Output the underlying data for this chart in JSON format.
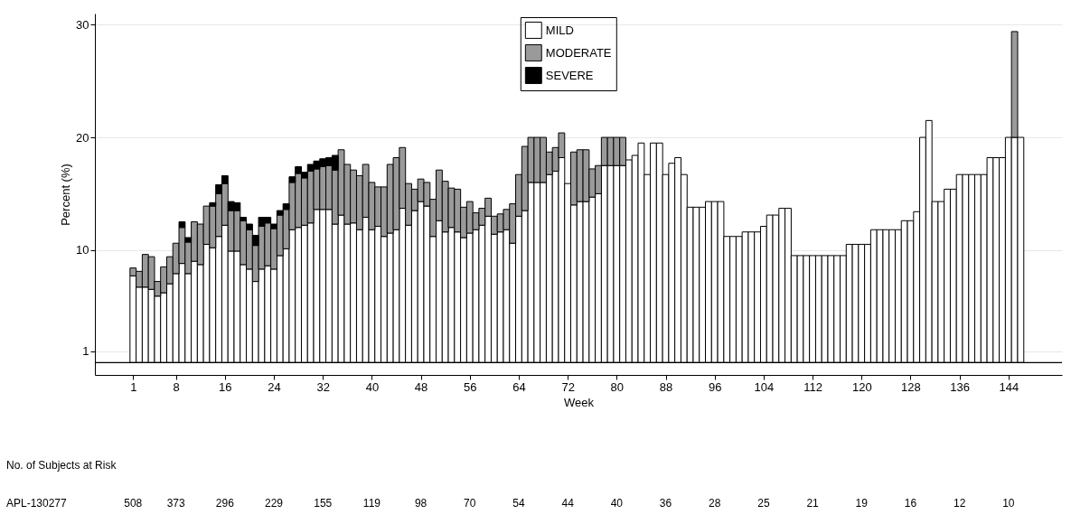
{
  "chart_data": {
    "type": "bar",
    "stacked": true,
    "xlabel": "Week",
    "ylabel": "Percent (%)",
    "x": [
      1,
      2,
      3,
      4,
      5,
      6,
      7,
      8,
      9,
      10,
      11,
      12,
      13,
      14,
      15,
      16,
      17,
      18,
      19,
      20,
      21,
      22,
      23,
      24,
      25,
      26,
      27,
      28,
      29,
      30,
      31,
      32,
      33,
      34,
      35,
      36,
      37,
      38,
      39,
      40,
      41,
      42,
      43,
      44,
      45,
      46,
      47,
      48,
      49,
      50,
      51,
      52,
      53,
      54,
      55,
      56,
      57,
      58,
      59,
      60,
      61,
      62,
      63,
      64,
      65,
      66,
      67,
      68,
      69,
      70,
      71,
      72,
      73,
      74,
      75,
      76,
      77,
      78,
      79,
      80,
      81,
      82,
      83,
      84,
      85,
      86,
      87,
      88,
      89,
      90,
      91,
      92,
      93,
      94,
      95,
      96,
      97,
      98,
      99,
      100,
      101,
      102,
      103,
      104,
      105,
      106,
      107,
      108,
      109,
      110,
      111,
      112,
      113,
      114,
      115,
      116,
      117,
      118,
      119,
      120,
      121,
      122,
      123,
      124,
      125,
      126,
      127,
      128,
      129,
      130,
      131,
      132,
      133,
      134,
      135,
      136,
      137,
      138,
      139,
      140,
      141,
      142,
      143,
      144,
      145,
      146
    ],
    "xlim": [
      -4.5,
      152
    ],
    "xticks": [
      1,
      8,
      16,
      24,
      32,
      40,
      48,
      56,
      64,
      72,
      80,
      88,
      96,
      104,
      112,
      120,
      128,
      136,
      144
    ],
    "ylim": [
      -1.1,
      31
    ],
    "yticks": [
      1,
      10,
      20,
      30
    ],
    "grid": "y",
    "legend": "top",
    "series": [
      {
        "name": "MILD",
        "color": "#ffffff",
        "values": [
          7.7,
          6.7,
          6.7,
          6.5,
          5.9,
          6.2,
          7.0,
          7.9,
          8.8,
          7.9,
          9.0,
          8.7,
          10.5,
          10.2,
          11.2,
          12.2,
          9.9,
          9.9,
          8.7,
          8.3,
          7.2,
          8.3,
          8.6,
          8.3,
          9.5,
          10.1,
          11.8,
          12.0,
          12.2,
          12.4,
          13.6,
          13.6,
          13.6,
          12.3,
          13.1,
          12.3,
          12.4,
          11.8,
          12.9,
          11.8,
          12.1,
          11.2,
          11.5,
          11.8,
          13.7,
          12.2,
          13.5,
          14.3,
          13.9,
          11.2,
          12.6,
          11.6,
          12.0,
          11.6,
          11.1,
          11.5,
          11.8,
          12.2,
          13.0,
          11.4,
          11.6,
          11.8,
          10.6,
          13.0,
          13.5,
          16.0,
          16.0,
          16.0,
          16.7,
          17.0,
          18.2,
          15.9,
          14.0,
          14.3,
          14.3,
          14.7,
          15.0,
          17.5,
          17.5,
          17.5,
          17.5,
          18.0,
          18.4,
          19.5,
          16.7,
          19.5,
          19.5,
          16.7,
          17.7,
          18.2,
          16.7,
          13.8,
          13.8,
          13.8,
          14.3,
          14.3,
          14.3,
          11.2,
          11.2,
          11.2,
          11.6,
          11.6,
          11.6,
          12.1,
          13.1,
          13.1,
          13.7,
          13.7,
          9.5,
          9.5,
          9.5,
          9.5,
          9.5,
          9.5,
          9.5,
          9.5,
          9.5,
          10.5,
          10.5,
          10.5,
          10.5,
          11.8,
          11.8,
          11.8,
          11.8,
          11.8,
          12.6,
          12.6,
          13.4,
          20.0,
          21.5,
          14.3,
          14.3,
          15.4,
          15.4,
          16.7,
          16.7,
          16.7,
          16.7,
          16.7,
          18.2,
          18.2,
          18.2,
          20.0,
          20.0,
          20.0
        ]
      },
      {
        "name": "MODERATE",
        "color": "#9a9a9a",
        "values": [
          0.7,
          1.4,
          2.9,
          2.9,
          1.3,
          2.3,
          2.4,
          2.7,
          3.2,
          2.8,
          3.5,
          3.6,
          3.4,
          3.7,
          3.8,
          3.7,
          3.6,
          3.6,
          3.9,
          3.5,
          3.2,
          3.8,
          3.8,
          3.6,
          3.6,
          3.5,
          4.2,
          4.8,
          4.2,
          4.6,
          3.6,
          3.8,
          3.9,
          4.8,
          5.8,
          5.3,
          4.7,
          4.8,
          4.7,
          4.2,
          3.5,
          4.4,
          6.1,
          6.4,
          5.4,
          3.7,
          1.9,
          2.0,
          2.1,
          3.3,
          4.5,
          4.5,
          3.5,
          3.8,
          2.7,
          2.8,
          1.5,
          1.5,
          1.6,
          1.6,
          1.6,
          1.8,
          3.5,
          3.7,
          5.7,
          4.0,
          4.0,
          4.0,
          2.0,
          2.1,
          2.2,
          null,
          4.7,
          4.6,
          4.6,
          2.5,
          2.5,
          2.5,
          2.5,
          2.5,
          2.5,
          null,
          null,
          null,
          null,
          null,
          null,
          null,
          null,
          null,
          null,
          null,
          null,
          null,
          null,
          null,
          null,
          null,
          null,
          null,
          null,
          null,
          null,
          null,
          null,
          null,
          null,
          null,
          null,
          null,
          null,
          null,
          null,
          null,
          null,
          null,
          null,
          null,
          null,
          null,
          null,
          null,
          null,
          null,
          null,
          null,
          null,
          null,
          null,
          null,
          null,
          null,
          null,
          null,
          null,
          null,
          null,
          null,
          null,
          null,
          null,
          null,
          null,
          null,
          9.4,
          null
        ]
      },
      {
        "name": "SEVERE",
        "color": "#000000",
        "values": [
          null,
          null,
          null,
          null,
          null,
          null,
          null,
          null,
          0.5,
          0.4,
          null,
          null,
          null,
          0.3,
          0.8,
          0.7,
          0.8,
          0.7,
          0.3,
          0.5,
          0.9,
          0.8,
          0.5,
          0.4,
          0.4,
          0.5,
          0.5,
          0.6,
          0.5,
          0.6,
          0.7,
          0.7,
          0.7,
          1.3,
          null,
          null,
          null,
          null,
          null,
          null,
          null,
          null,
          null,
          null,
          null,
          null,
          null,
          null,
          null,
          null,
          null,
          null,
          null,
          null,
          null,
          null,
          null,
          null,
          null,
          null,
          null,
          null,
          null,
          null,
          null,
          null,
          null,
          null,
          null,
          null,
          null,
          null,
          null,
          null,
          null,
          null,
          null,
          null,
          null,
          null,
          null,
          null,
          null,
          null,
          null,
          null,
          null,
          null,
          null,
          null,
          null,
          null,
          null,
          null,
          null,
          null,
          null,
          null,
          null,
          null,
          null,
          null,
          null,
          null,
          null,
          null,
          null,
          null,
          null,
          null,
          null,
          null,
          null,
          null,
          null,
          null,
          null,
          null,
          null,
          null,
          null,
          null,
          null,
          null,
          null,
          null,
          null,
          null,
          null,
          null,
          null,
          null,
          null,
          null,
          null,
          null,
          null,
          null,
          null,
          null,
          null,
          null,
          null,
          null,
          null,
          null
        ]
      }
    ],
    "ref_lines": [
      {
        "axis": "y",
        "value": 0,
        "color": "#000000"
      }
    ],
    "annotations": [
      "No. of Subjects at Risk",
      "APL-130277",
      "508",
      "373",
      "296",
      "229",
      "155",
      "119",
      "98",
      "70",
      "54",
      "44",
      "40",
      "36",
      "28",
      "25",
      "21",
      "19",
      "16",
      "12",
      "10"
    ]
  }
}
